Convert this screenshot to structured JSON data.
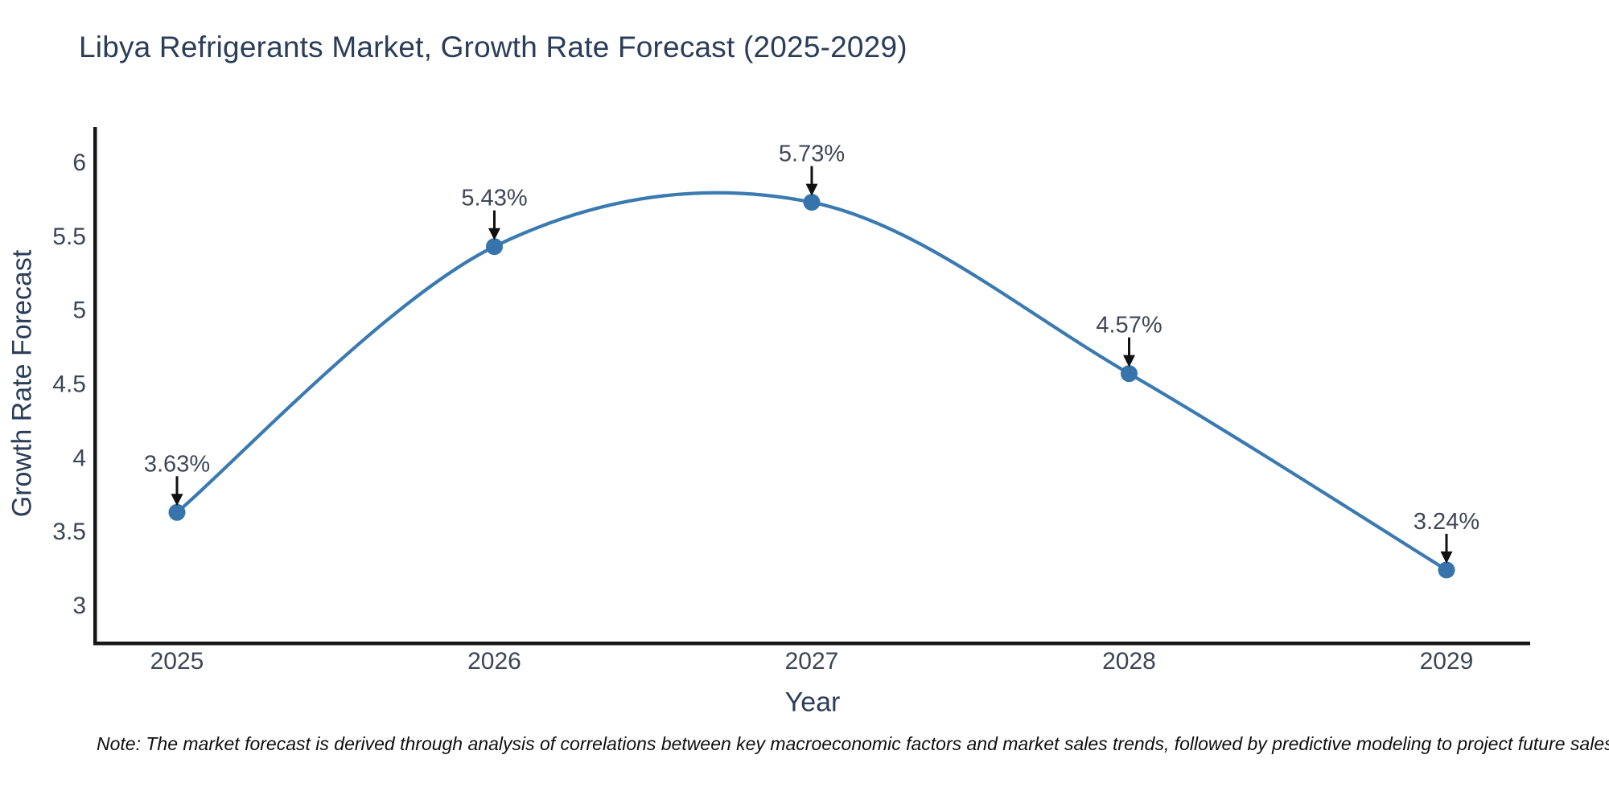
{
  "chart": {
    "title": "Libya Refrigerants Market, Growth Rate Forecast (2025-2029)",
    "note": "Note: The market forecast is derived through analysis of correlations between key macroeconomic factors and market sales trends, followed by predictive modeling to project future sales"
  },
  "chart_data": {
    "type": "line",
    "title": "Libya Refrigerants Market, Growth Rate Forecast (2025-2029)",
    "xlabel": "Year",
    "ylabel": "Growth Rate Forecast",
    "categories": [
      "2025",
      "2026",
      "2027",
      "2028",
      "2029"
    ],
    "values": [
      3.63,
      5.43,
      5.73,
      4.57,
      3.24
    ],
    "point_labels": [
      "3.63%",
      "5.43%",
      "5.73%",
      "4.57%",
      "3.24%"
    ],
    "yticks": [
      6,
      5.5,
      5,
      4.5,
      4,
      3.5,
      3
    ],
    "ylim": [
      2.73,
      6.24
    ],
    "line_shape": "spline",
    "grid": false,
    "legend": "none",
    "colors": {
      "line": "#3b7ab0",
      "marker": "#3674ab",
      "axis": "#161616",
      "arrow": "#111111",
      "title": "#2b3d59",
      "tick": "#3c4657",
      "annotation": "#3f4757"
    }
  }
}
